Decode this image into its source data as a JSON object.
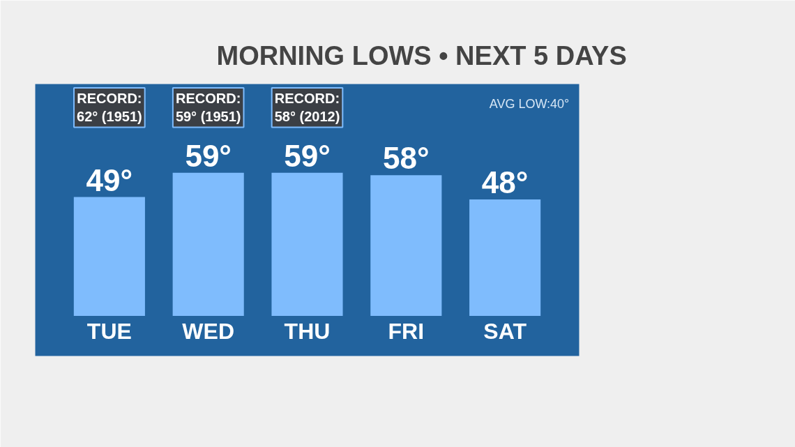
{
  "chart_data": {
    "type": "bar",
    "title": "MORNING LOWS • NEXT 5 DAYS",
    "categories": [
      "TUE",
      "WED",
      "THU",
      "FRI",
      "SAT"
    ],
    "values": [
      49,
      59,
      59,
      58,
      48
    ],
    "color": "#7fbcfd",
    "value_labels": [
      "49°",
      "59°",
      "59°",
      "58°",
      "48°"
    ],
    "annotations": [
      "RECORD:\n62° (1951)",
      "RECORD:\n59° (1951)",
      "RECORD:\n58° (2012)",
      "AVG LOW:40°"
    ]
  }
}
